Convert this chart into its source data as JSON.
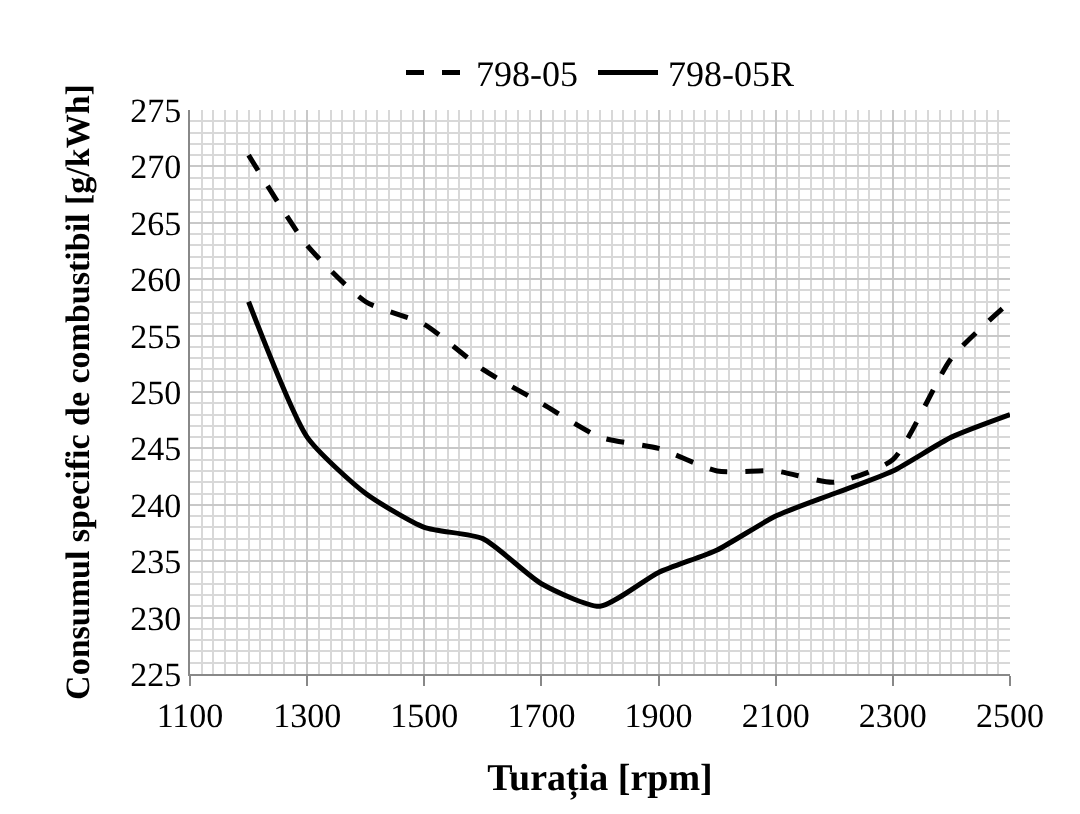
{
  "chart_data": {
    "type": "line",
    "xlabel": "Turația [rpm]",
    "ylabel": "Consumul specific de combustibil [g/kWh]",
    "x": [
      1200,
      1300,
      1400,
      1500,
      1600,
      1700,
      1800,
      1900,
      2000,
      2100,
      2200,
      2300,
      2400,
      2500
    ],
    "series": [
      {
        "name": "798-05",
        "color": "#000000",
        "line_style": "dashed",
        "values": [
          271,
          263,
          258,
          256,
          252,
          249,
          246,
          245,
          243,
          243,
          242,
          244,
          253,
          258
        ]
      },
      {
        "name": "798-05R",
        "color": "#000000",
        "line_style": "solid",
        "values": [
          258,
          246,
          241,
          238,
          237,
          233,
          231,
          234,
          236,
          239,
          241,
          243,
          246,
          248
        ]
      }
    ],
    "xlim": [
      1100,
      2500
    ],
    "xticks": [
      1100,
      1300,
      1500,
      1700,
      1900,
      2100,
      2300,
      2500
    ],
    "ylim": [
      225,
      275
    ],
    "yticks": [
      225,
      230,
      235,
      240,
      245,
      250,
      255,
      260,
      265,
      270,
      275
    ],
    "grid": true,
    "legend": "top",
    "marker": "none"
  }
}
